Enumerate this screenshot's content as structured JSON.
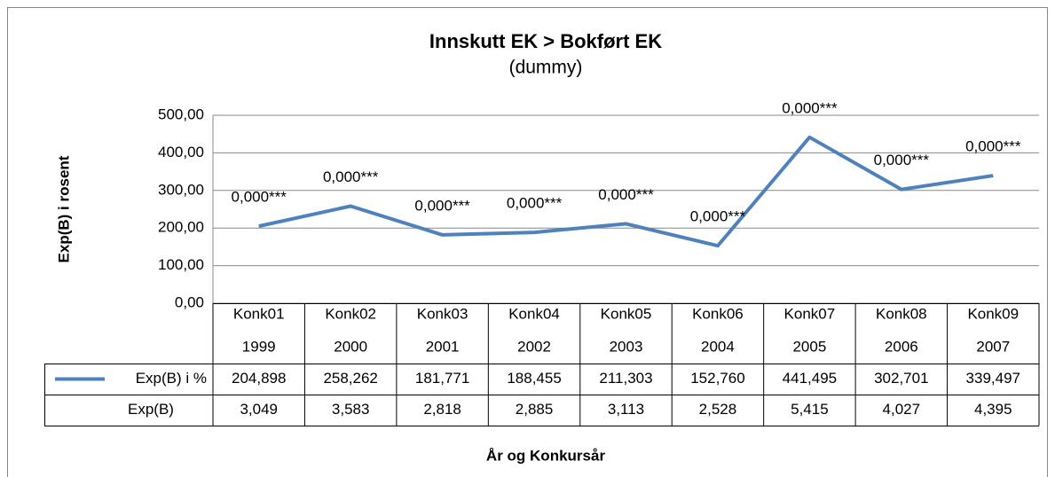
{
  "chart_data": {
    "type": "line",
    "title": "Innskutt EK > Bokført EK",
    "subtitle": "(dummy)",
    "y_label": "Exp(B) i rosent",
    "x_label": "År og Konkursår",
    "categories": [
      [
        "Konk01",
        "1999"
      ],
      [
        "Konk02",
        "2000"
      ],
      [
        "Konk03",
        "2001"
      ],
      [
        "Konk04",
        "2002"
      ],
      [
        "Konk05",
        "2003"
      ],
      [
        "Konk06",
        "2004"
      ],
      [
        "Konk07",
        "2005"
      ],
      [
        "Konk08",
        "2006"
      ],
      [
        "Konk09",
        "2007"
      ]
    ],
    "series": [
      {
        "name": "Exp(B) i %",
        "color": "#4f81bd",
        "values": [
          204.898,
          258.262,
          181.771,
          188.455,
          211.303,
          152.76,
          441.495,
          302.701,
          339.497
        ],
        "value_labels": [
          "204,898",
          "258,262",
          "181,771",
          "188,455",
          "211,303",
          "152,760",
          "441,495",
          "302,701",
          "339,497"
        ],
        "data_labels": [
          "0,000***",
          "0,000***",
          "0,000***",
          "0,000***",
          "0,000***",
          "0,000***",
          "0,000***",
          "0,000***",
          "0,000***"
        ]
      }
    ],
    "table_row": {
      "name": "Exp(B)",
      "cells": [
        "3,049",
        "3,583",
        "2,818",
        "2,885",
        "3,113",
        "2,528",
        "5,415",
        "4,027",
        "4,395"
      ]
    },
    "ylim": [
      0,
      500
    ],
    "yticks": [
      {
        "value": 0,
        "label": "0,00"
      },
      {
        "value": 100,
        "label": "100,00"
      },
      {
        "value": 200,
        "label": "200,00"
      },
      {
        "value": 300,
        "label": "300,00"
      },
      {
        "value": 400,
        "label": "400,00"
      },
      {
        "value": 500,
        "label": "500,00"
      }
    ],
    "grid": true
  }
}
